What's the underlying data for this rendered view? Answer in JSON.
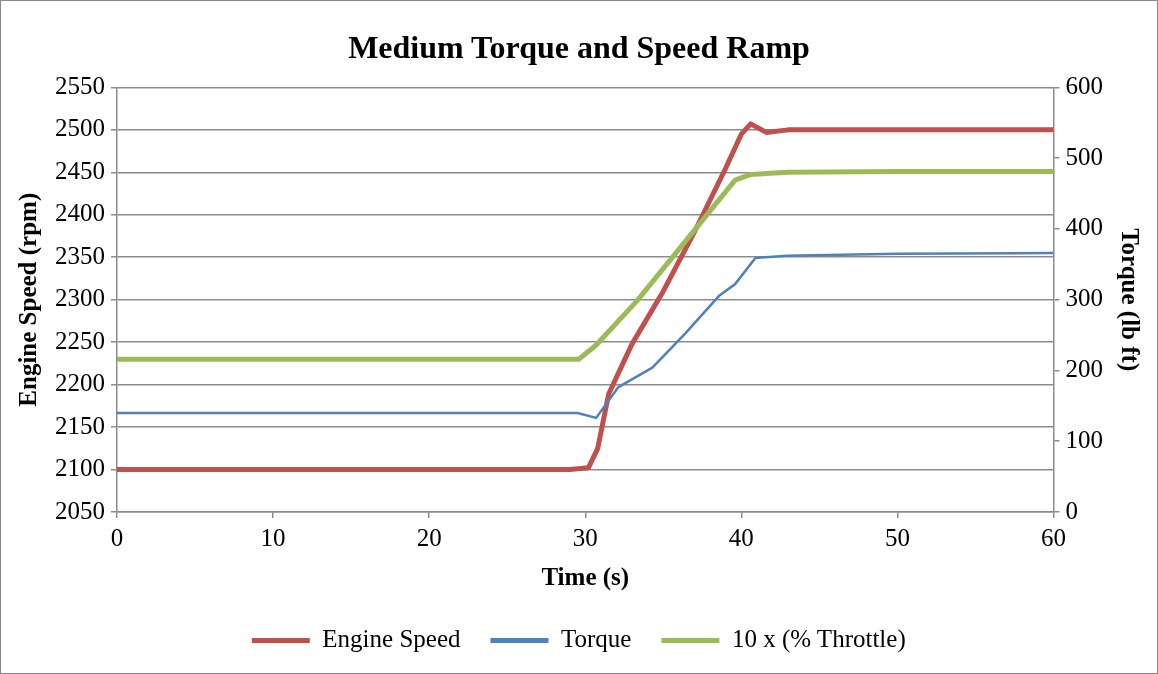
{
  "chart_data": {
    "type": "line",
    "title": "Medium Torque and Speed Ramp",
    "xlabel": "Time (s)",
    "ylabel": "Engine Speed (rpm)",
    "y2label": "Torque (lb ft)",
    "xlim": [
      0,
      60
    ],
    "xticks": [
      0,
      10,
      20,
      30,
      40,
      50,
      60
    ],
    "ylim": [
      2050,
      2550
    ],
    "yticks": [
      2050,
      2100,
      2150,
      2200,
      2250,
      2300,
      2350,
      2400,
      2450,
      2500,
      2550
    ],
    "y2lim": [
      0,
      600
    ],
    "y2ticks": [
      0,
      100,
      200,
      300,
      400,
      500,
      600
    ],
    "grid": "y",
    "legend": "bottom",
    "marker": "none",
    "line_style": "solid",
    "series": [
      {
        "name": "Engine Speed",
        "color": "#c0504d",
        "x": [
          0,
          5,
          10,
          15,
          20,
          25,
          29,
          30.2,
          30.8,
          31.5,
          33,
          35,
          37,
          39,
          40,
          40.6,
          41.6,
          43,
          50,
          60
        ],
        "values": [
          2100,
          2100,
          2100,
          2100,
          2100,
          2100,
          2100,
          2102,
          2125,
          2189,
          2248,
          2310,
          2380,
          2455,
          2495,
          2507,
          2497,
          2500,
          2500,
          2500
        ]
      },
      {
        "name": "Torque",
        "color": "#4f81bd",
        "axis": "y2",
        "x": [
          0,
          10,
          20,
          29.5,
          30.7,
          32.1,
          34.3,
          36.4,
          38.6,
          39.6,
          40.9,
          42.9,
          50,
          60
        ],
        "values": [
          140,
          140,
          140,
          140,
          133,
          176,
          204,
          252,
          306,
          322,
          359,
          362,
          365,
          366
        ]
      },
      {
        "name": "10 x (% Throttle)",
        "color": "#9bbb59",
        "axis": "y2",
        "x": [
          0,
          10,
          20,
          29.6,
          30.7,
          33.3,
          36.4,
          39.6,
          40.6,
          43,
          50,
          60
        ],
        "values": [
          216,
          216,
          216,
          216,
          236,
          298,
          382,
          469,
          477,
          480,
          481,
          481
        ]
      }
    ]
  }
}
